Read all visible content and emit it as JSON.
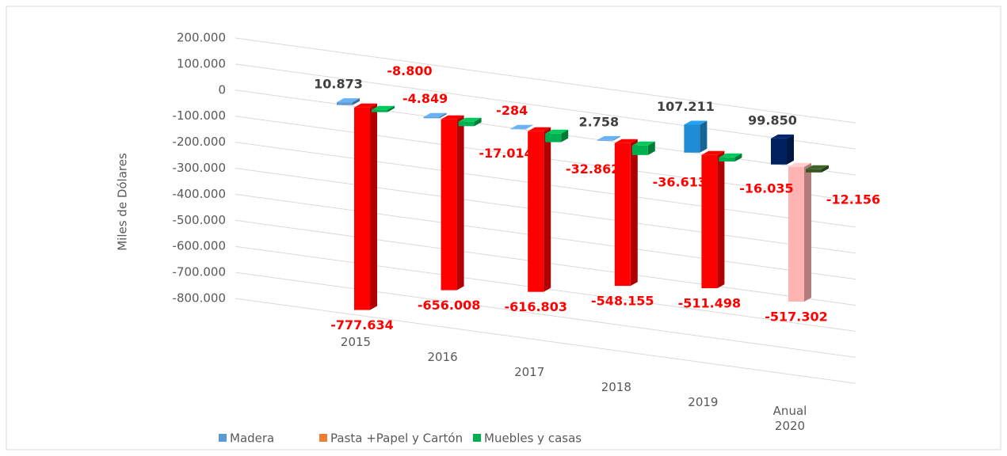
{
  "chart_data": {
    "type": "bar3d",
    "y_label": "Miles de Dólares",
    "categories": [
      "2015",
      "2016",
      "2017",
      "2018",
      "2019",
      "Anual 2020"
    ],
    "series": [
      {
        "name": "Madera",
        "color": "#5b9bd5",
        "colors": [
          "#5b9bd5",
          "#5b9bd5",
          "#5b9bd5",
          "#5b9bd5",
          "#1f8dd6",
          "#002060"
        ],
        "values": [
          10873,
          -4849,
          -284,
          2758,
          107211,
          99850
        ],
        "value_labels": [
          "10.873",
          "-4.849",
          "-284",
          "2.758",
          "107.211",
          "99.850"
        ]
      },
      {
        "name": "Pasta +Papel y Cartón",
        "color": "#ed7d31",
        "colors": [
          "#ff0000",
          "#ff0000",
          "#ff0000",
          "#ff0000",
          "#ff0000",
          "#ffb3b3"
        ],
        "values": [
          -777634,
          -656008,
          -616803,
          -548155,
          -511498,
          -517302
        ],
        "value_labels": [
          "-777.634",
          "-656.008",
          "-616.803",
          "-548.155",
          "-511.498",
          "-517.302"
        ]
      },
      {
        "name": "Muebles y casas",
        "color": "#00b050",
        "colors": [
          "#00b050",
          "#00b050",
          "#00b050",
          "#00b050",
          "#00b050",
          "#375623"
        ],
        "values": [
          -8800,
          -17014,
          -32862,
          -36613,
          -16035,
          -12156
        ],
        "value_labels": [
          "-8.800",
          "-17.014",
          "-32.862",
          "-36.613",
          "-16.035",
          "-12.156"
        ]
      }
    ],
    "ylim": [
      -800000,
      200000
    ],
    "yticks": [
      {
        "value": -800000,
        "label": "-800.000"
      },
      {
        "value": -700000,
        "label": "-700.000"
      },
      {
        "value": -600000,
        "label": "-600.000"
      },
      {
        "value": -500000,
        "label": "-500.000"
      },
      {
        "value": -400000,
        "label": "-400.000"
      },
      {
        "value": -300000,
        "label": "-300.000"
      },
      {
        "value": -200000,
        "label": "-200.000"
      },
      {
        "value": -100000,
        "label": "-100.000"
      },
      0,
      {
        "value": 100000,
        "label": "100.000"
      },
      {
        "value": 200000,
        "label": "200.000"
      }
    ],
    "grid": true,
    "legend": "bottom"
  }
}
